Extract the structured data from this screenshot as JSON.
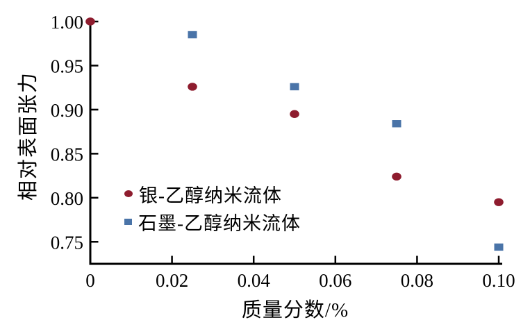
{
  "chart_data": {
    "type": "scatter",
    "title": "",
    "xlabel": "质量分数/%",
    "ylabel": "相对表面张力",
    "xlim": [
      0,
      0.1
    ],
    "ylim": [
      0.725,
      1.0
    ],
    "x_ticks": [
      0,
      0.02,
      0.04,
      0.06,
      0.08,
      0.1
    ],
    "x_tick_labels": [
      "0",
      "0.02",
      "0.04",
      "0.06",
      "0.08",
      "0.10"
    ],
    "y_ticks": [
      0.75,
      0.8,
      0.85,
      0.9,
      0.95,
      1.0
    ],
    "y_tick_labels": [
      "0.75",
      "0.80",
      "0.85",
      "0.90",
      "0.95",
      "1.00"
    ],
    "grid": false,
    "legend_position": "inside lower-left",
    "background_color": "#ffffff",
    "axis_color": "#000000",
    "series": [
      {
        "name": "银-乙醇纳米流体",
        "marker": "circle",
        "color": "#8e1c2e",
        "x": [
          0,
          0.025,
          0.05,
          0.075,
          0.1
        ],
        "y": [
          1.0,
          0.926,
          0.895,
          0.824,
          0.795
        ]
      },
      {
        "name": "石墨-乙醇纳米流体",
        "marker": "square",
        "color": "#4a74a8",
        "x": [
          0.025,
          0.05,
          0.075,
          0.1
        ],
        "y": [
          0.985,
          0.926,
          0.884,
          0.744
        ]
      }
    ]
  }
}
